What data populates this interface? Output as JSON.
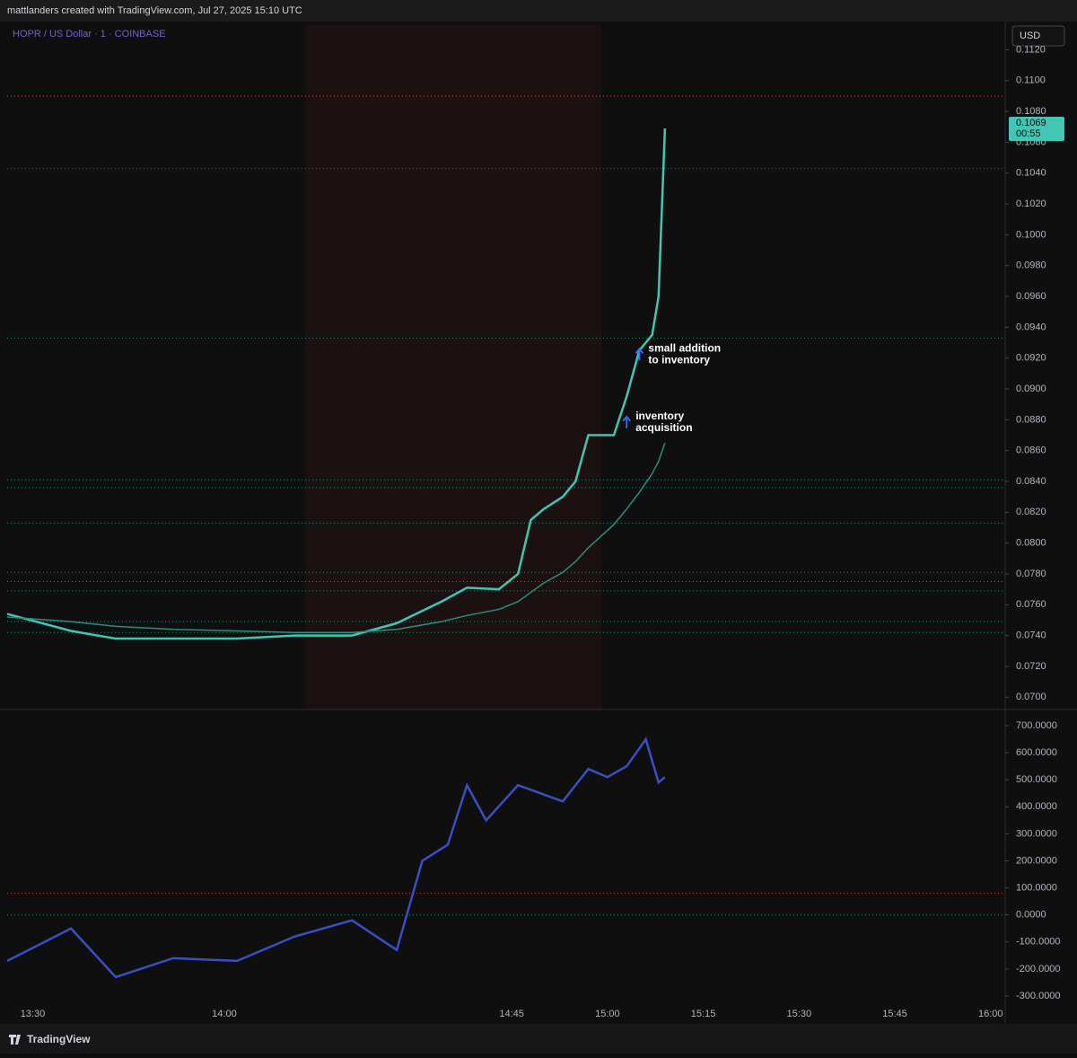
{
  "header": {
    "title": "mattlanders created with TradingView.com, Jul 27, 2025 15:10 UTC"
  },
  "footer": {
    "brand": "TradingView"
  },
  "chart_data": [
    {
      "type": "line",
      "title": "HOPR / US Dollar · 1 · COINBASE",
      "currency": "USD",
      "x": [
        "13:26",
        "13:36",
        "13:43",
        "13:52",
        "14:02",
        "14:11",
        "14:20",
        "14:27",
        "14:34",
        "14:38",
        "14:43",
        "14:46",
        "14:48",
        "14:50",
        "14:53",
        "14:55",
        "14:57",
        "15:01",
        "15:03",
        "15:05",
        "15:07",
        "15:08",
        "15:09"
      ],
      "series": [
        {
          "color": "#43c6b4",
          "values": [
            0.0754,
            0.0743,
            0.0738,
            0.0738,
            0.0738,
            0.074,
            0.074,
            0.0748,
            0.0762,
            0.0771,
            0.077,
            0.078,
            0.0815,
            0.0822,
            0.083,
            0.084,
            0.087,
            0.087,
            0.0895,
            0.0925,
            0.0935,
            0.096,
            0.1069
          ]
        },
        {
          "color": "#2a8f7f",
          "values": [
            0.0752,
            0.0749,
            0.0746,
            0.0744,
            0.0743,
            0.0742,
            0.0742,
            0.0744,
            0.0749,
            0.0753,
            0.0757,
            0.0762,
            0.0768,
            0.0774,
            0.0781,
            0.0788,
            0.0797,
            0.0812,
            0.0822,
            0.0833,
            0.0845,
            0.0853,
            0.0865
          ]
        }
      ],
      "ylim": [
        0.0692,
        0.1136
      ],
      "yticks": [
        {
          "value": 0.07,
          "label": "0.0700"
        },
        {
          "value": 0.072,
          "label": "0.0720"
        },
        {
          "value": 0.074,
          "label": "0.0740"
        },
        {
          "value": 0.076,
          "label": "0.0760"
        },
        {
          "value": 0.078,
          "label": "0.0780"
        },
        {
          "value": 0.08,
          "label": "0.0800"
        },
        {
          "value": 0.082,
          "label": "0.0820"
        },
        {
          "value": 0.084,
          "label": "0.0840"
        },
        {
          "value": 0.086,
          "label": "0.0860"
        },
        {
          "value": 0.088,
          "label": "0.0880"
        },
        {
          "value": 0.09,
          "label": "0.0900"
        },
        {
          "value": 0.092,
          "label": "0.0920"
        },
        {
          "value": 0.094,
          "label": "0.0940"
        },
        {
          "value": 0.096,
          "label": "0.0960"
        },
        {
          "value": 0.098,
          "label": "0.0980"
        },
        {
          "value": 0.1,
          "label": "0.1000"
        },
        {
          "value": 0.102,
          "label": "0.1020"
        },
        {
          "value": 0.104,
          "label": "0.1040"
        },
        {
          "value": 0.106,
          "label": "0.1060"
        },
        {
          "value": 0.108,
          "label": "0.1080"
        },
        {
          "value": 0.11,
          "label": "0.1100"
        },
        {
          "value": 0.112,
          "label": "0.1120"
        }
      ],
      "last": {
        "value": 0.1069,
        "label": "0.1069",
        "countdown": "00:55"
      },
      "hlines": [
        {
          "value": 0.109,
          "color": "#c0503a"
        },
        {
          "value": 0.1043,
          "color": "#3d5bd6"
        },
        {
          "value": 0.0933,
          "color": "#2a8f7f"
        },
        {
          "value": 0.0841,
          "color": "#2a8f7f"
        },
        {
          "value": 0.0836,
          "color": "#2a8f7f"
        },
        {
          "value": 0.0813,
          "color": "#2a8f7f"
        },
        {
          "value": 0.0781,
          "color": "#2a8f7f"
        },
        {
          "value": 0.0775,
          "color": "#2a8f7f"
        },
        {
          "value": 0.0769,
          "color": "#2a8f7f"
        },
        {
          "value": 0.0749,
          "color": "#2a8f7f"
        },
        {
          "value": 0.0742,
          "color": "#2a8f7f"
        }
      ],
      "annotations": [
        {
          "x": "15:05",
          "y": 0.0922,
          "lines": [
            "small addition",
            "to inventory"
          ]
        },
        {
          "x": "15:03",
          "y": 0.0878,
          "lines": [
            "inventory",
            "acquisition"
          ]
        }
      ]
    },
    {
      "type": "line",
      "x": [
        "13:26",
        "13:36",
        "13:43",
        "13:52",
        "14:02",
        "14:11",
        "14:20",
        "14:27",
        "14:31",
        "14:35",
        "14:38",
        "14:41",
        "14:46",
        "14:53",
        "14:57",
        "15:00",
        "15:03",
        "15:06",
        "15:08",
        "15:09"
      ],
      "series": [
        {
          "color": "#3a4fc4",
          "values": [
            -170,
            -50,
            -230,
            -160,
            -170,
            -80,
            -20,
            -130,
            200,
            260,
            480,
            350,
            480,
            420,
            540,
            510,
            550,
            650,
            490,
            510
          ]
        }
      ],
      "ylim": [
        -330,
        760
      ],
      "yticks": [
        {
          "value": -300,
          "label": "-300.0000"
        },
        {
          "value": -200,
          "label": "-200.0000"
        },
        {
          "value": -100,
          "label": "-100.0000"
        },
        {
          "value": 0,
          "label": "0.0000"
        },
        {
          "value": 100,
          "label": "100.0000"
        },
        {
          "value": 200,
          "label": "200.0000"
        },
        {
          "value": 300,
          "label": "300.0000"
        },
        {
          "value": 400,
          "label": "400.0000"
        },
        {
          "value": 500,
          "label": "500.0000"
        },
        {
          "value": 600,
          "label": "600.0000"
        },
        {
          "value": 700,
          "label": "700.0000"
        }
      ],
      "hlines": [
        {
          "value": 0,
          "color": "#2a8f7f"
        },
        {
          "value": 80,
          "color": "#c0503a"
        }
      ],
      "xlim": [
        "13:26",
        "16:02"
      ],
      "xticks": [
        "13:30",
        "14:00",
        "14:45",
        "15:00",
        "15:15",
        "15:30",
        "15:45",
        "16:00"
      ]
    }
  ]
}
